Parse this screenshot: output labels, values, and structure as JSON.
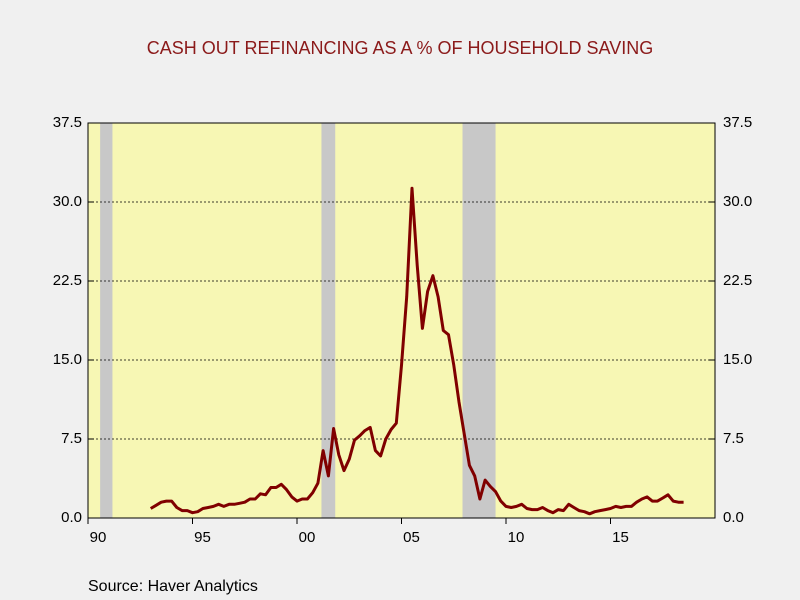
{
  "chart_data": {
    "type": "line",
    "title": "CASH OUT REFINANCING AS A % OF HOUSEHOLD SAVING",
    "source": "Source:  Haver Analytics",
    "x": [
      1993.0,
      1993.25,
      1993.5,
      1993.75,
      1994.0,
      1994.25,
      1994.5,
      1994.75,
      1995.0,
      1995.25,
      1995.5,
      1995.75,
      1996.0,
      1996.25,
      1996.5,
      1996.75,
      1997.0,
      1997.25,
      1997.5,
      1997.75,
      1998.0,
      1998.25,
      1998.5,
      1998.75,
      1999.0,
      1999.25,
      1999.5,
      1999.75,
      2000.0,
      2000.25,
      2000.5,
      2000.75,
      2001.0,
      2001.25,
      2001.5,
      2001.75,
      2002.0,
      2002.25,
      2002.5,
      2002.75,
      2003.0,
      2003.25,
      2003.5,
      2003.75,
      2004.0,
      2004.25,
      2004.5,
      2004.75,
      2005.0,
      2005.25,
      2005.5,
      2005.75,
      2006.0,
      2006.25,
      2006.5,
      2006.75,
      2007.0,
      2007.25,
      2007.5,
      2007.75,
      2008.0,
      2008.25,
      2008.5,
      2008.75,
      2009.0,
      2009.25,
      2009.5,
      2009.75,
      2010.0,
      2010.25,
      2010.5,
      2010.75,
      2011.0,
      2011.25,
      2011.5,
      2011.75,
      2012.0,
      2012.25,
      2012.5,
      2012.75,
      2013.0,
      2013.25,
      2013.5,
      2013.75,
      2014.0,
      2014.25,
      2014.5,
      2014.75,
      2015.0,
      2015.25,
      2015.5,
      2015.75,
      2016.0,
      2016.25,
      2016.5,
      2016.75,
      2017.0,
      2017.25,
      2017.5,
      2017.75,
      2018.0,
      2018.25,
      2018.5
    ],
    "series": [
      {
        "color": "#800000",
        "values": [
          0.9,
          1.2,
          1.5,
          1.6,
          1.6,
          1.0,
          0.7,
          0.7,
          0.5,
          0.6,
          0.9,
          1.0,
          1.1,
          1.3,
          1.1,
          1.3,
          1.3,
          1.4,
          1.5,
          1.8,
          1.8,
          2.3,
          2.2,
          2.9,
          2.9,
          3.2,
          2.7,
          2.0,
          1.6,
          1.8,
          1.8,
          2.4,
          3.3,
          6.4,
          4.0,
          8.5,
          6.0,
          4.5,
          5.6,
          7.4,
          7.8,
          8.3,
          8.6,
          6.4,
          5.9,
          7.5,
          8.4,
          9.0,
          14.5,
          21.0,
          31.3,
          24.0,
          18.0,
          21.5,
          23.0,
          21.0,
          17.8,
          17.4,
          14.5,
          11.0,
          8.0,
          5.0,
          4.0,
          1.8,
          3.6,
          3.0,
          2.5,
          1.6,
          1.1,
          1.0,
          1.1,
          1.3,
          0.9,
          0.8,
          0.8,
          1.0,
          0.7,
          0.5,
          0.8,
          0.7,
          1.3,
          1.0,
          0.7,
          0.6,
          0.4,
          0.6,
          0.7,
          0.8,
          0.9,
          1.1,
          1.0,
          1.1,
          1.1,
          1.5,
          1.8,
          2.0,
          1.6,
          1.6,
          1.9,
          2.2,
          1.6,
          1.5,
          1.5
        ]
      }
    ],
    "recessions": [
      [
        1990.58,
        1991.17
      ],
      [
        2001.17,
        2001.83
      ],
      [
        2007.92,
        2009.5
      ]
    ],
    "xlim": [
      1990,
      2020
    ],
    "xticks": [
      {
        "value": 1990,
        "label": "90"
      },
      {
        "value": 1995,
        "label": "95"
      },
      {
        "value": 2000,
        "label": "00"
      },
      {
        "value": 2005,
        "label": "05"
      },
      {
        "value": 2010,
        "label": "10"
      },
      {
        "value": 2015,
        "label": "15"
      }
    ],
    "ylim": [
      0,
      37.5
    ],
    "yticks": [
      {
        "value": 0,
        "label": "0.0"
      },
      7.5,
      {
        "value": 15,
        "label": "15.0"
      },
      {
        "value": 22.5,
        "label": "22.5"
      },
      {
        "value": 30,
        "label": "30.0"
      },
      37.5
    ],
    "grid": true
  }
}
